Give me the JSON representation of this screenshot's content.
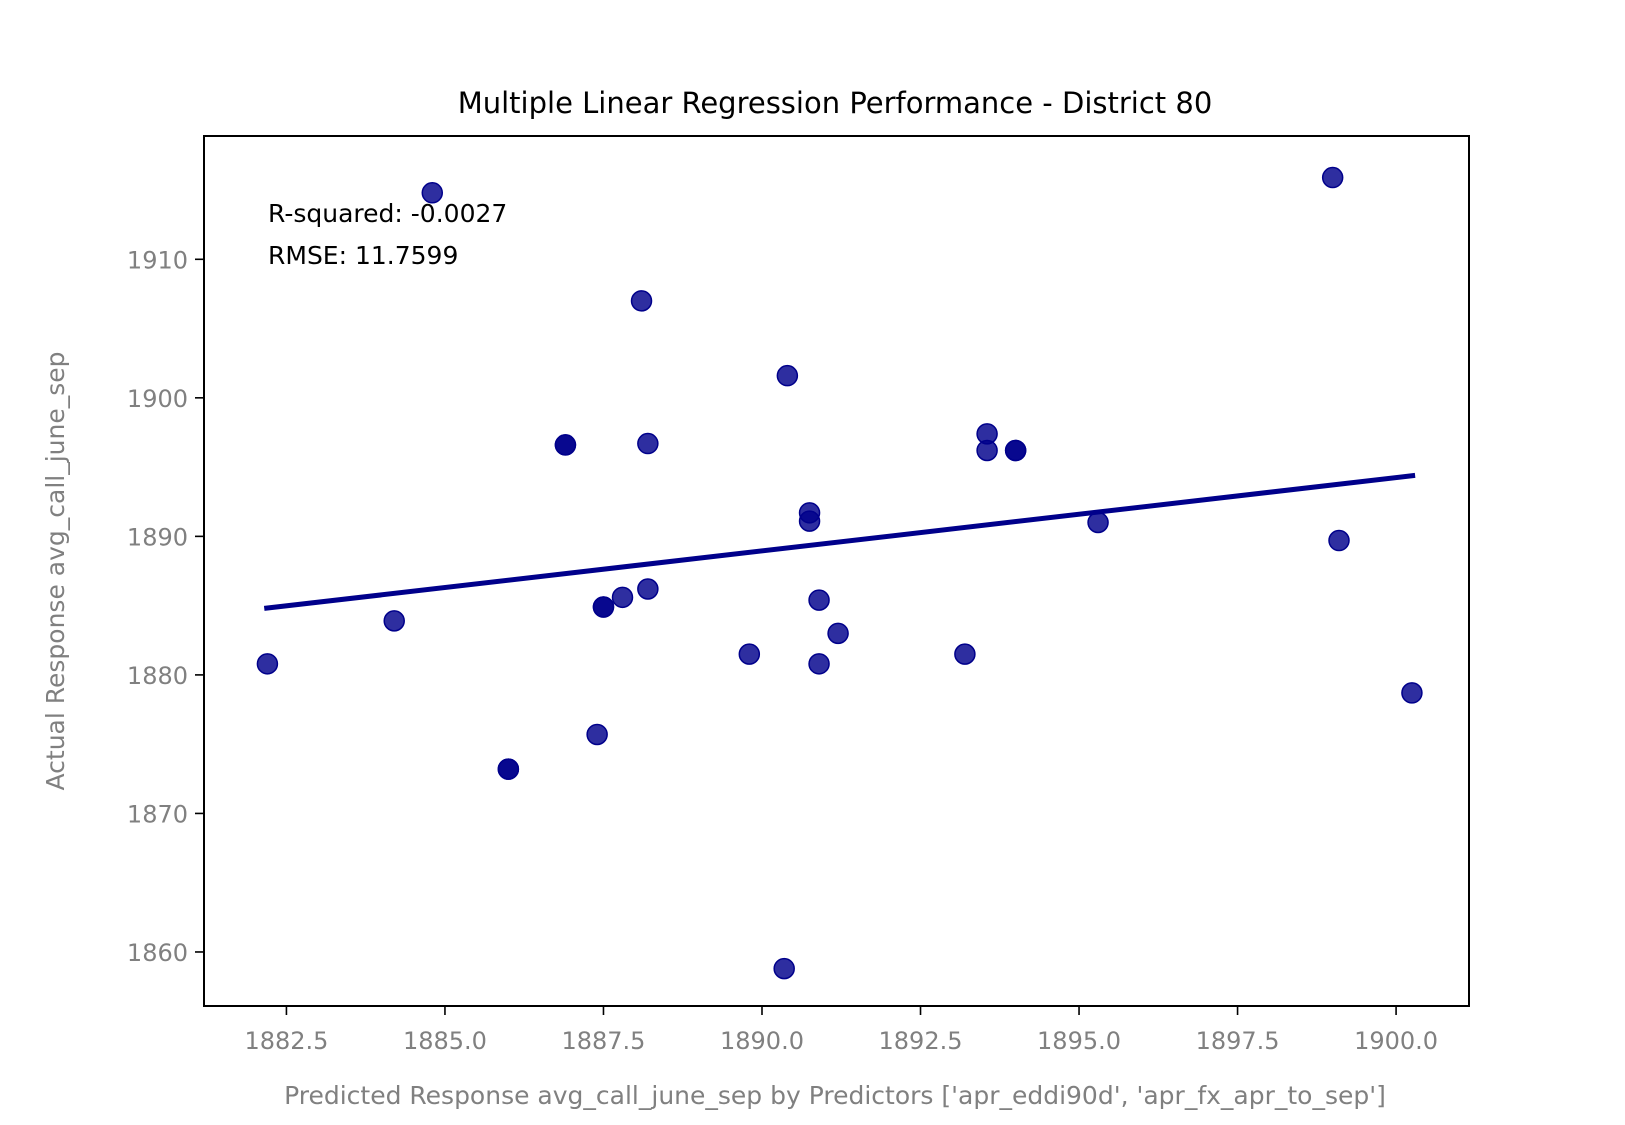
{
  "chart_data": {
    "type": "scatter",
    "title": "Multiple Linear Regression Performance - District 80",
    "xlabel": "Predicted Response avg_call_june_sep by Predictors ['apr_eddi90d', 'apr_fx_apr_to_sep']",
    "ylabel": "Actual Response avg_call_june_sep",
    "xlim": [
      1881.2,
      1901.15
    ],
    "ylim": [
      1856.1,
      1918.9
    ],
    "x_ticks": [
      "1882.5",
      "1885.0",
      "1887.5",
      "1890.0",
      "1892.5",
      "1895.0",
      "1897.5",
      "1900.0"
    ],
    "x_tick_values": [
      1882.5,
      1885.0,
      1887.5,
      1890.0,
      1892.5,
      1895.0,
      1897.5,
      1900.0
    ],
    "y_ticks": [
      "1860",
      "1870",
      "1880",
      "1890",
      "1900",
      "1910"
    ],
    "y_tick_values": [
      1860,
      1870,
      1880,
      1890,
      1900,
      1910
    ],
    "grid": false,
    "marker_color": "#00008b",
    "annotations": {
      "r_squared": "R-squared: -0.0027",
      "rmse": "RMSE: 11.7599"
    },
    "points": [
      {
        "x": 1882.2,
        "y": 1880.8
      },
      {
        "x": 1884.2,
        "y": 1883.9
      },
      {
        "x": 1884.8,
        "y": 1914.8
      },
      {
        "x": 1886.0,
        "y": 1873.2
      },
      {
        "x": 1886.0,
        "y": 1873.2
      },
      {
        "x": 1886.9,
        "y": 1896.6
      },
      {
        "x": 1886.9,
        "y": 1896.6
      },
      {
        "x": 1887.4,
        "y": 1875.7
      },
      {
        "x": 1887.5,
        "y": 1884.9
      },
      {
        "x": 1887.5,
        "y": 1884.9
      },
      {
        "x": 1887.8,
        "y": 1885.6
      },
      {
        "x": 1888.1,
        "y": 1907.0
      },
      {
        "x": 1888.2,
        "y": 1896.7
      },
      {
        "x": 1888.2,
        "y": 1886.2
      },
      {
        "x": 1889.8,
        "y": 1881.5
      },
      {
        "x": 1890.35,
        "y": 1858.8
      },
      {
        "x": 1890.4,
        "y": 1901.6
      },
      {
        "x": 1890.75,
        "y": 1891.7
      },
      {
        "x": 1890.75,
        "y": 1891.1
      },
      {
        "x": 1890.9,
        "y": 1885.4
      },
      {
        "x": 1890.9,
        "y": 1880.8
      },
      {
        "x": 1891.2,
        "y": 1883.0
      },
      {
        "x": 1893.2,
        "y": 1881.5
      },
      {
        "x": 1893.55,
        "y": 1897.4
      },
      {
        "x": 1893.55,
        "y": 1896.2
      },
      {
        "x": 1894.0,
        "y": 1896.2
      },
      {
        "x": 1894.0,
        "y": 1896.2
      },
      {
        "x": 1895.3,
        "y": 1891.0
      },
      {
        "x": 1899.0,
        "y": 1915.9
      },
      {
        "x": 1899.1,
        "y": 1889.7
      },
      {
        "x": 1900.25,
        "y": 1878.7
      }
    ],
    "fit_line": {
      "x": [
        1882.15,
        1900.3
      ],
      "y": [
        1884.8,
        1894.4
      ]
    }
  }
}
